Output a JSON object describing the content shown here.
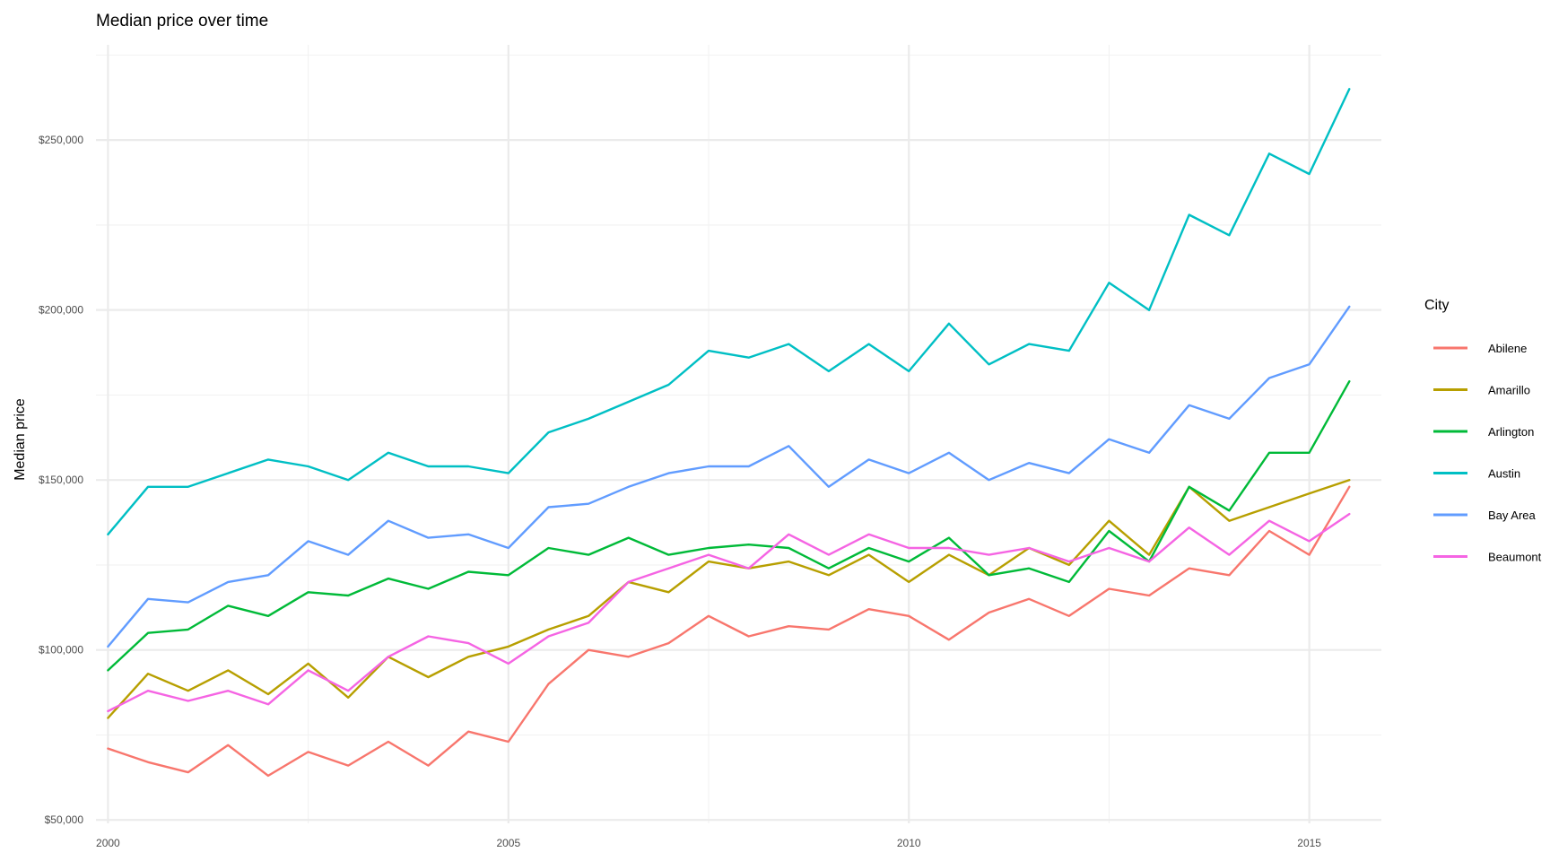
{
  "chart_data": {
    "type": "line",
    "title": "Median price over time",
    "xlabel": "",
    "ylabel": "Median price",
    "xlim": [
      1999.85,
      2015.9
    ],
    "ylim": [
      49000,
      278000
    ],
    "x_ticks": [
      2000,
      2005,
      2010,
      2015
    ],
    "x_tick_labels": [
      "2000",
      "2005",
      "2010",
      "2015"
    ],
    "y_ticks": [
      50000,
      100000,
      150000,
      200000,
      250000
    ],
    "y_tick_labels": [
      "$50,000",
      "$100,000",
      "$150,000",
      "$200,000",
      "$250,000"
    ],
    "grid": true,
    "legend": {
      "title": "City",
      "position": "right"
    },
    "series": [
      {
        "name": "Abilene",
        "color": "#F8766D",
        "x": [
          2000.0,
          2000.5,
          2001.0,
          2001.5,
          2002.0,
          2002.5,
          2003.0,
          2003.5,
          2004.0,
          2004.5,
          2005.0,
          2005.5,
          2006.0,
          2006.5,
          2007.0,
          2007.5,
          2008.0,
          2008.5,
          2009.0,
          2009.5,
          2010.0,
          2010.5,
          2011.0,
          2011.5,
          2012.0,
          2012.5,
          2013.0,
          2013.5,
          2014.0,
          2014.5,
          2015.0,
          2015.5
        ],
        "values": [
          71000,
          67000,
          64000,
          72000,
          63000,
          70000,
          66000,
          73000,
          66000,
          76000,
          73000,
          90000,
          100000,
          98000,
          102000,
          110000,
          104000,
          107000,
          106000,
          112000,
          110000,
          103000,
          111000,
          115000,
          110000,
          118000,
          116000,
          124000,
          122000,
          135000,
          128000,
          148000
        ]
      },
      {
        "name": "Amarillo",
        "color": "#B79F00",
        "x": [
          2000.0,
          2000.5,
          2001.0,
          2001.5,
          2002.0,
          2002.5,
          2003.0,
          2003.5,
          2004.0,
          2004.5,
          2005.0,
          2005.5,
          2006.0,
          2006.5,
          2007.0,
          2007.5,
          2008.0,
          2008.5,
          2009.0,
          2009.5,
          2010.0,
          2010.5,
          2011.0,
          2011.5,
          2012.0,
          2012.5,
          2013.0,
          2013.5,
          2014.0,
          2014.5,
          2015.0,
          2015.5
        ],
        "values": [
          80000,
          93000,
          88000,
          94000,
          87000,
          96000,
          86000,
          98000,
          92000,
          98000,
          101000,
          106000,
          110000,
          120000,
          117000,
          126000,
          124000,
          126000,
          122000,
          128000,
          120000,
          128000,
          122000,
          130000,
          125000,
          138000,
          128000,
          148000,
          138000,
          142000,
          146000,
          150000
        ]
      },
      {
        "name": "Arlington",
        "color": "#00BA38",
        "x": [
          2000.0,
          2000.5,
          2001.0,
          2001.5,
          2002.0,
          2002.5,
          2003.0,
          2003.5,
          2004.0,
          2004.5,
          2005.0,
          2005.5,
          2006.0,
          2006.5,
          2007.0,
          2007.5,
          2008.0,
          2008.5,
          2009.0,
          2009.5,
          2010.0,
          2010.5,
          2011.0,
          2011.5,
          2012.0,
          2012.5,
          2013.0,
          2013.5,
          2014.0,
          2014.5,
          2015.0,
          2015.5
        ],
        "values": [
          94000,
          105000,
          106000,
          113000,
          110000,
          117000,
          116000,
          121000,
          118000,
          123000,
          122000,
          130000,
          128000,
          133000,
          128000,
          130000,
          131000,
          130000,
          124000,
          130000,
          126000,
          133000,
          122000,
          124000,
          120000,
          135000,
          126000,
          148000,
          141000,
          158000,
          158000,
          179000
        ]
      },
      {
        "name": "Austin",
        "color": "#00BFC4",
        "x": [
          2000.0,
          2000.5,
          2001.0,
          2001.5,
          2002.0,
          2002.5,
          2003.0,
          2003.5,
          2004.0,
          2004.5,
          2005.0,
          2005.5,
          2006.0,
          2006.5,
          2007.0,
          2007.5,
          2008.0,
          2008.5,
          2009.0,
          2009.5,
          2010.0,
          2010.5,
          2011.0,
          2011.5,
          2012.0,
          2012.5,
          2013.0,
          2013.5,
          2014.0,
          2014.5,
          2015.0,
          2015.5
        ],
        "values": [
          134000,
          148000,
          148000,
          152000,
          156000,
          154000,
          150000,
          158000,
          154000,
          154000,
          152000,
          164000,
          168000,
          173000,
          178000,
          188000,
          186000,
          190000,
          182000,
          190000,
          182000,
          196000,
          184000,
          190000,
          188000,
          208000,
          200000,
          228000,
          222000,
          246000,
          240000,
          265000
        ]
      },
      {
        "name": "Bay Area",
        "color": "#619CFF",
        "x": [
          2000.0,
          2000.5,
          2001.0,
          2001.5,
          2002.0,
          2002.5,
          2003.0,
          2003.5,
          2004.0,
          2004.5,
          2005.0,
          2005.5,
          2006.0,
          2006.5,
          2007.0,
          2007.5,
          2008.0,
          2008.5,
          2009.0,
          2009.5,
          2010.0,
          2010.5,
          2011.0,
          2011.5,
          2012.0,
          2012.5,
          2013.0,
          2013.5,
          2014.0,
          2014.5,
          2015.0,
          2015.5
        ],
        "values": [
          101000,
          115000,
          114000,
          120000,
          122000,
          132000,
          128000,
          138000,
          133000,
          134000,
          130000,
          142000,
          143000,
          148000,
          152000,
          154000,
          154000,
          160000,
          148000,
          156000,
          152000,
          158000,
          150000,
          155000,
          152000,
          162000,
          158000,
          172000,
          168000,
          180000,
          184000,
          201000
        ]
      },
      {
        "name": "Beaumont",
        "color": "#F564E3",
        "x": [
          2000.0,
          2000.5,
          2001.0,
          2001.5,
          2002.0,
          2002.5,
          2003.0,
          2003.5,
          2004.0,
          2004.5,
          2005.0,
          2005.5,
          2006.0,
          2006.5,
          2007.0,
          2007.5,
          2008.0,
          2008.5,
          2009.0,
          2009.5,
          2010.0,
          2010.5,
          2011.0,
          2011.5,
          2012.0,
          2012.5,
          2013.0,
          2013.5,
          2014.0,
          2014.5,
          2015.0,
          2015.5
        ],
        "values": [
          82000,
          88000,
          85000,
          88000,
          84000,
          94000,
          88000,
          98000,
          104000,
          102000,
          96000,
          104000,
          108000,
          120000,
          124000,
          128000,
          124000,
          134000,
          128000,
          134000,
          130000,
          130000,
          128000,
          130000,
          126000,
          130000,
          126000,
          136000,
          128000,
          138000,
          132000,
          140000
        ]
      }
    ]
  }
}
